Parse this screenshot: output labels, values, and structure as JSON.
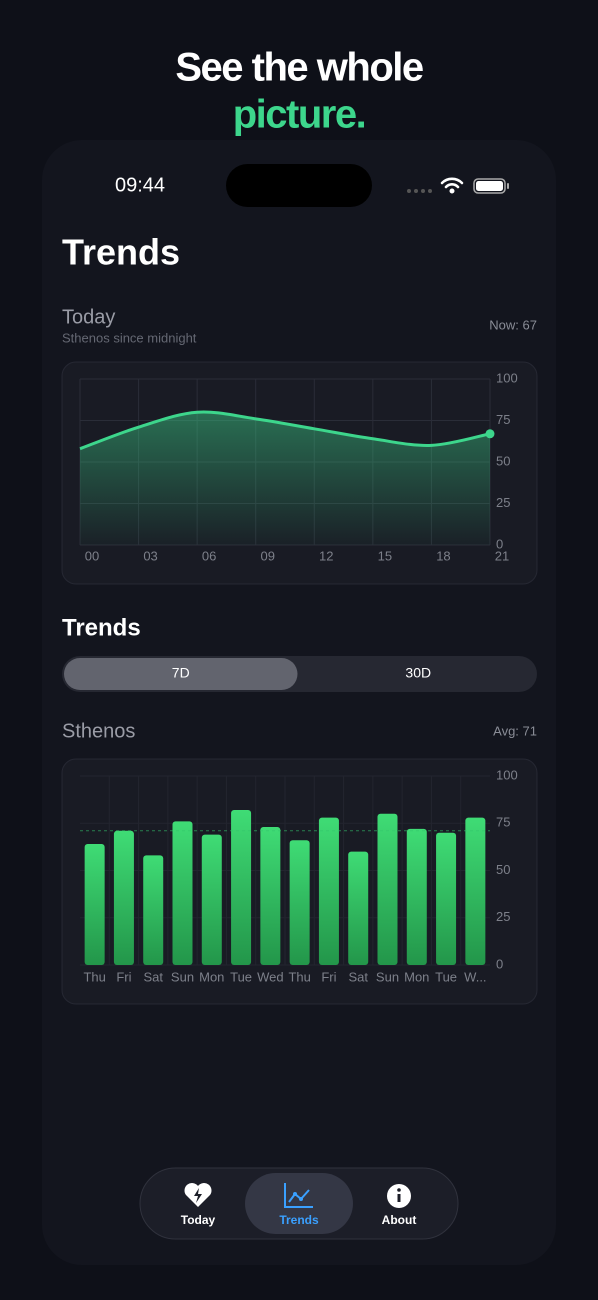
{
  "headline": {
    "line1": "See the whole",
    "line2": "picture."
  },
  "status_bar": {
    "time": "09:44"
  },
  "page_title": "Trends",
  "section_title": "Trends",
  "segmented_control": {
    "options": [
      "7D",
      "30D"
    ],
    "selected": 0
  },
  "tab_bar": {
    "tabs": [
      "Today",
      "Trends",
      "About"
    ],
    "selected": 1
  },
  "chart_data": [
    {
      "type": "line",
      "title": "Today",
      "subtitle": "Sthenos since midnight",
      "annotation": "Now: 67",
      "x": [
        0,
        3,
        6,
        9,
        12,
        15,
        18,
        21
      ],
      "values": [
        58,
        71,
        80,
        76,
        70,
        64,
        60,
        67
      ],
      "color": "#3dd68c",
      "xlim": [
        0,
        21
      ],
      "ylim": [
        0,
        100
      ],
      "xticks": [
        {
          "value": 0,
          "label": "00"
        },
        {
          "value": 3,
          "label": "03"
        },
        {
          "value": 6,
          "label": "06"
        },
        {
          "value": 9,
          "label": "09"
        },
        12,
        15,
        18,
        21
      ],
      "yticks": [
        0,
        25,
        50,
        75,
        100
      ],
      "grid": true
    },
    {
      "type": "bar",
      "title": "Sthenos",
      "categories": [
        "Thu",
        "Fri",
        "Sat",
        "Sun",
        "Mon",
        "Tue",
        "Wed",
        "Thu",
        "Fri",
        "Sat",
        "Sun",
        "Mon",
        "Tue",
        "W..."
      ],
      "values": [
        64,
        71,
        58,
        76,
        69,
        82,
        73,
        66,
        78,
        60,
        80,
        72,
        70,
        78
      ],
      "color": "#34c46a",
      "average": {
        "value": 71,
        "label": "Avg: 71"
      },
      "ylim": [
        0,
        100
      ],
      "yticks": [
        0,
        25,
        50,
        75,
        100
      ],
      "grid": true
    }
  ]
}
